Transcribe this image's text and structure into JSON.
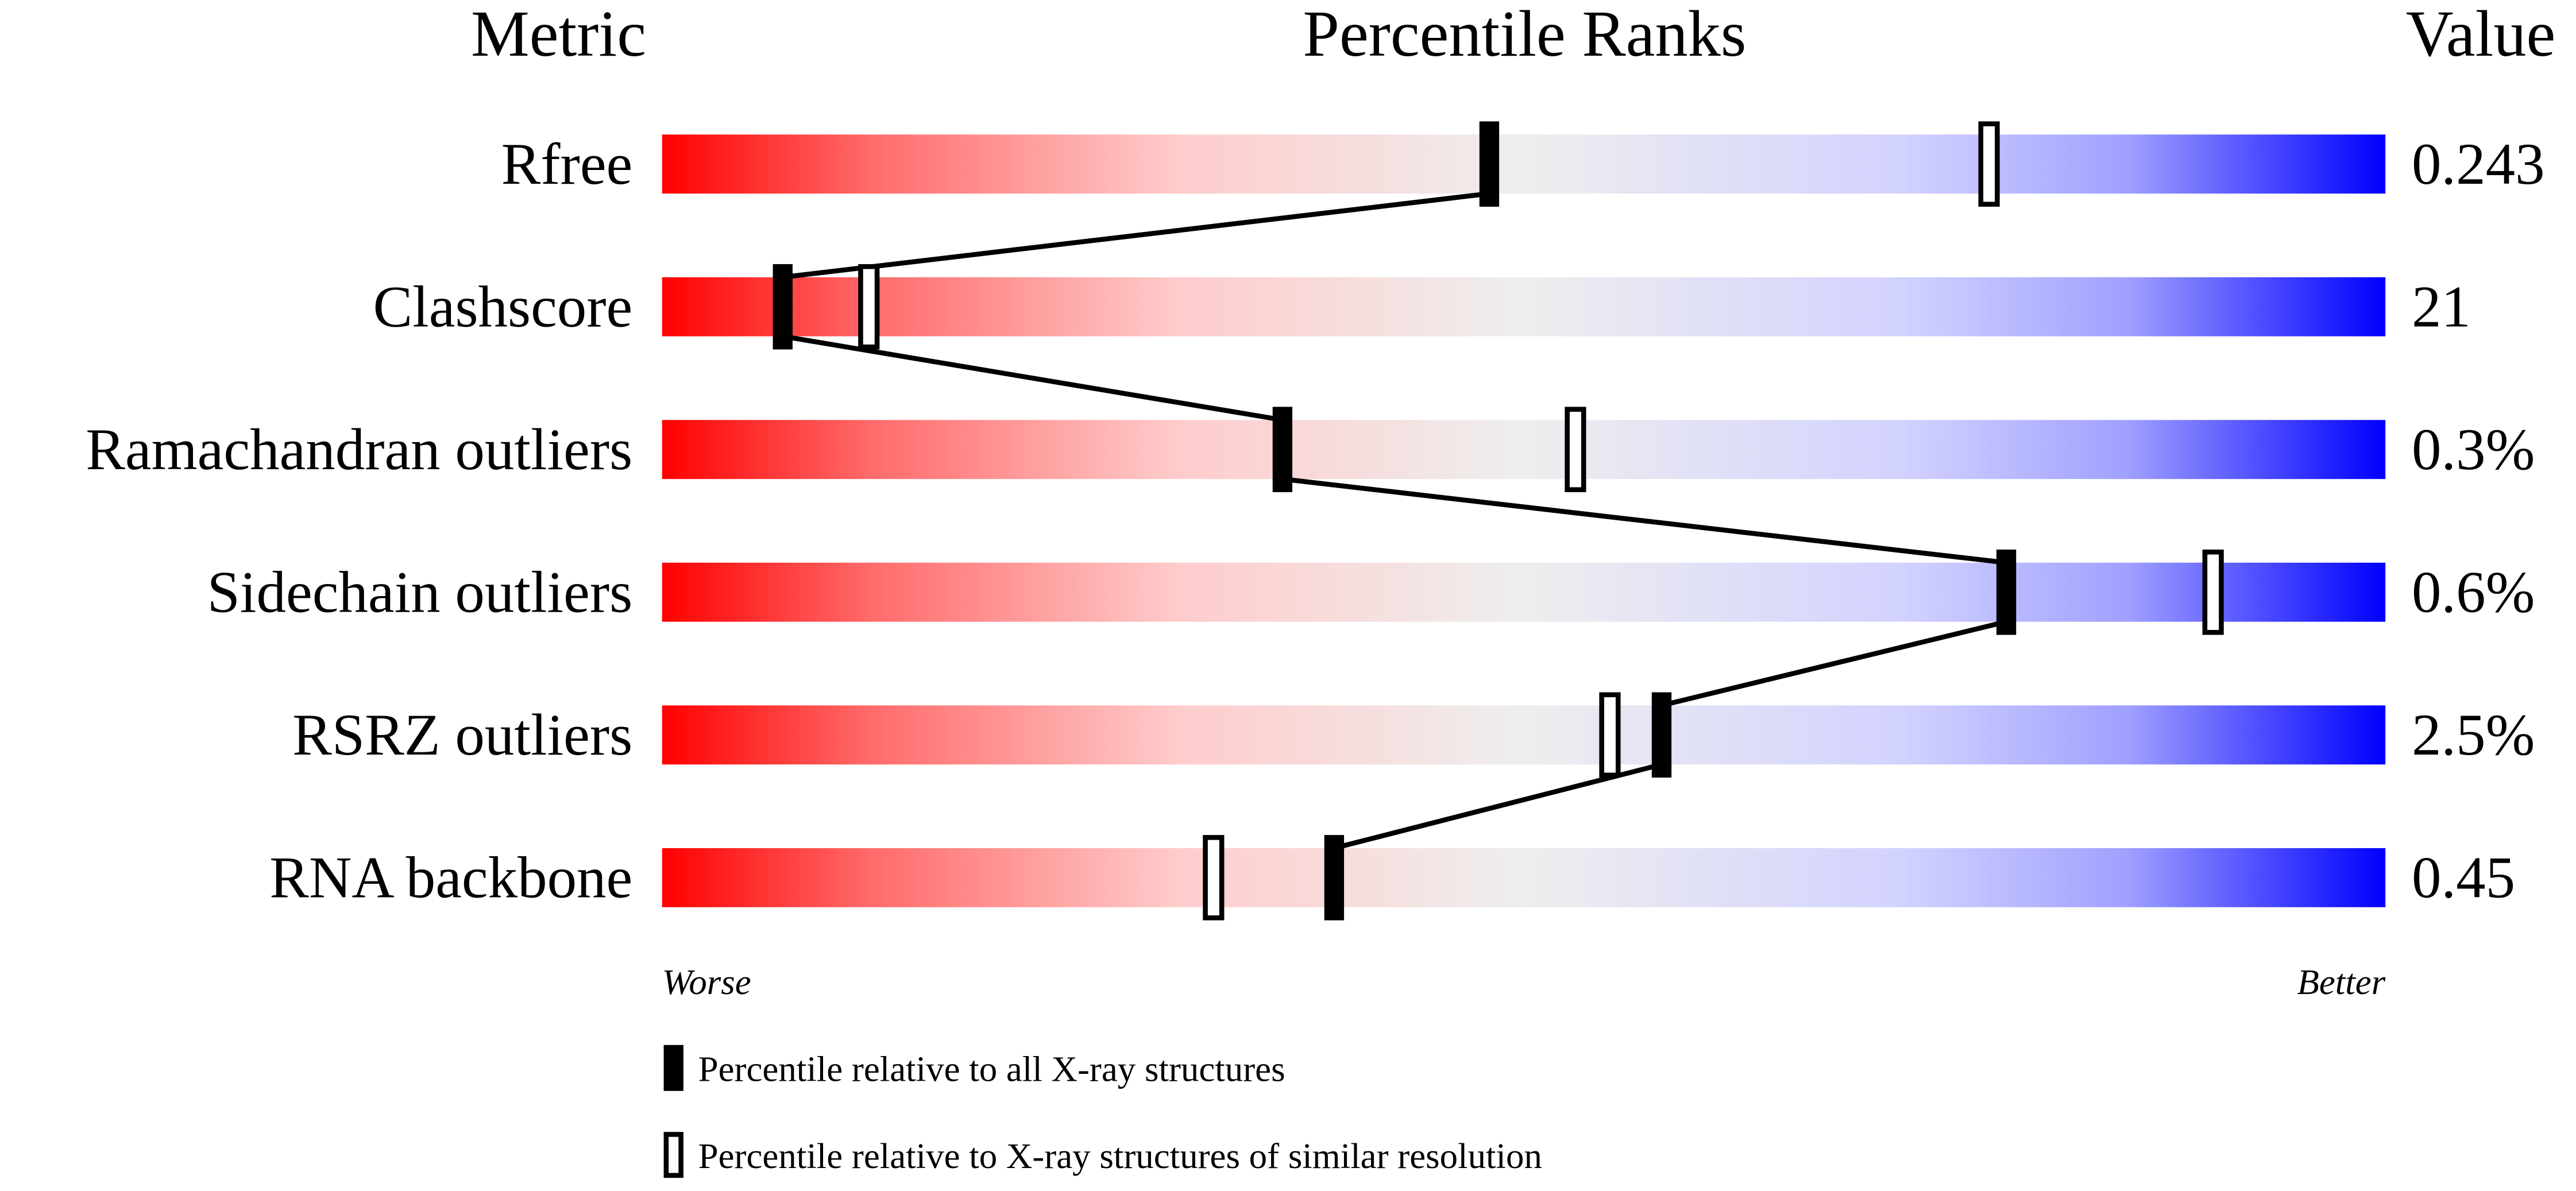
{
  "chart_data": {
    "type": "percentile-slider",
    "headers": [
      "Metric",
      "Percentile Ranks",
      "Value"
    ],
    "categories": [
      "Rfree",
      "Clashscore",
      "Ramachandran outliers",
      "Sidechain outliers",
      "RSRZ outliers",
      "RNA backbone"
    ],
    "metric_values": [
      "0.243",
      "21",
      "0.3%",
      "0.6%",
      "2.5%",
      "0.45"
    ],
    "series": [
      {
        "name": "Percentile relative to all X-ray structures",
        "color": "#000000",
        "values": [
          48,
          7,
          36,
          78,
          58,
          39
        ]
      },
      {
        "name": "Percentile relative to X-ray structures of similar resolution",
        "color": "#ffffff",
        "values": [
          77,
          12,
          53,
          90,
          55,
          32
        ]
      }
    ],
    "xlim": [
      0,
      100
    ],
    "axis_ends": [
      "Worse",
      "Better"
    ]
  }
}
